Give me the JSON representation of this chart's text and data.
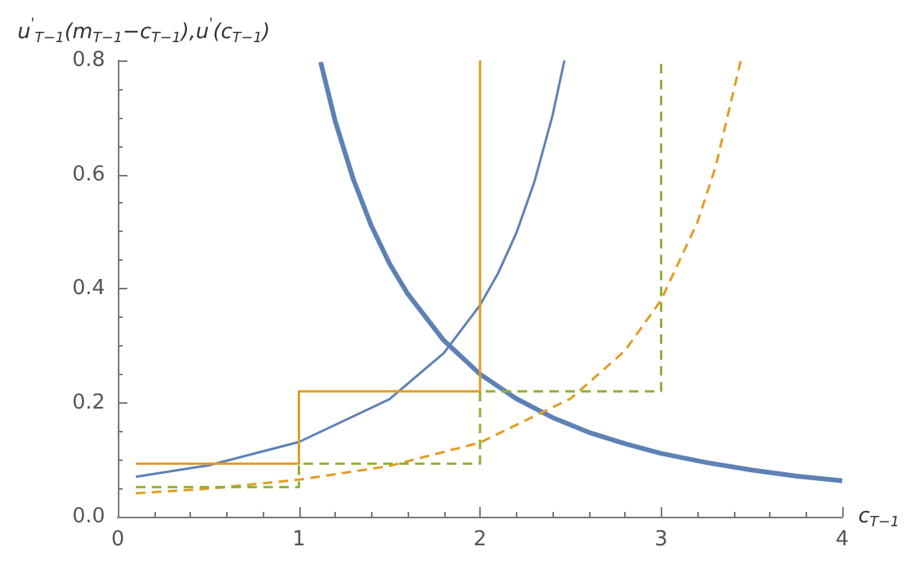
{
  "chart_data": {
    "type": "line",
    "xlabel": "c$_{T−1}$",
    "ylabel": "u$^{'}$$_{T−1}$(m$_{T−1}$−c$_{T−1}$),u$^{'}$(c$_{T−1}$)",
    "xlim": [
      0,
      4
    ],
    "xticks": [
      0,
      1,
      2,
      3,
      4
    ],
    "ylim": [
      0,
      0.8
    ],
    "yticks": [
      {
        "value": 0,
        "label": "0.0"
      },
      0.2,
      0.4,
      0.6,
      0.8
    ],
    "grid": false,
    "marker": "none",
    "series": [
      {
        "color": "#5e81b5",
        "line_style": "solid",
        "x": [
          1.12,
          1.2,
          1.3,
          1.4,
          1.5,
          1.6,
          1.8,
          2,
          2.2,
          2.4,
          2.6,
          2.8,
          3,
          3.25,
          3.5,
          3.75,
          4
        ],
        "values": [
          0.797,
          0.694,
          0.592,
          0.51,
          0.444,
          0.391,
          0.309,
          0.25,
          0.207,
          0.174,
          0.148,
          0.128,
          0.111,
          0.095,
          0.082,
          0.071,
          0.063
        ]
      },
      {
        "color": "#5e81b5",
        "line_style": "solid",
        "x": [
          0.1,
          0.5,
          1,
          1.5,
          1.8,
          2,
          2.1,
          2.2,
          2.3,
          2.4,
          2.466
        ],
        "values": [
          0.07,
          0.09,
          0.131,
          0.206,
          0.287,
          0.371,
          0.427,
          0.497,
          0.587,
          0.703,
          0.8
        ]
      },
      {
        "color": "#e19c24",
        "line_style": "dashed",
        "x": [
          0.1,
          0.5,
          1,
          1.5,
          2,
          2.5,
          2.8,
          3,
          3.2,
          3.3,
          3.44
        ],
        "values": [
          0.041,
          0.049,
          0.065,
          0.089,
          0.13,
          0.207,
          0.291,
          0.38,
          0.516,
          0.613,
          0.8
        ]
      },
      {
        "color": "#e19c24",
        "line_style": "solid",
        "x": [
          0.1,
          1,
          1,
          2,
          2
        ],
        "values": [
          0.093,
          0.093,
          0.22,
          0.22,
          0.8
        ]
      },
      {
        "color": "#8fb032",
        "line_style": "dashed",
        "x": [
          0.1,
          1,
          1,
          2,
          2,
          3,
          3
        ],
        "values": [
          0.052,
          0.052,
          0.093,
          0.093,
          0.22,
          0.22,
          0.8
        ]
      }
    ]
  }
}
